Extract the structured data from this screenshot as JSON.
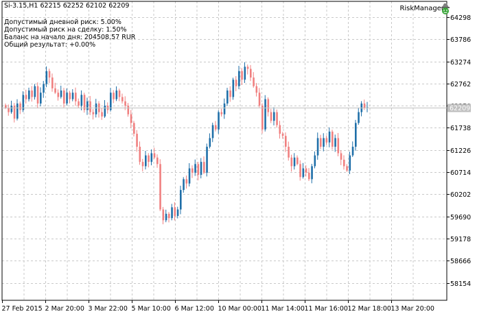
{
  "header": {
    "ohlc_line": "Si-3.15,H1  62215 62252 62102 62209"
  },
  "info_panel": {
    "lines": [
      "Допустимый дневной риск: 5.00%",
      "Допустимый риск на сделку: 1.50%",
      "Баланс на начало дня: 204508.57 RUR",
      "Общий результат: +0.00%"
    ]
  },
  "expert": {
    "name": "RiskManager",
    "icon": "smiley-hat-icon"
  },
  "colors": {
    "background": "#ffffff",
    "grid": "#c8c8c8",
    "bull": "#1f6fa8",
    "bear": "#f08080",
    "current_price_bg": "#c0c0c0",
    "axis": "#000000"
  },
  "current_price": "62209",
  "chart_data": {
    "type": "candlestick",
    "symbol": "Si-3.15",
    "timeframe": "H1",
    "price_axis_labels": [
      "64298",
      "63786",
      "63274",
      "62762",
      "62250",
      "61738",
      "61226",
      "60714",
      "60202",
      "59690",
      "59178",
      "58666",
      "58154"
    ],
    "time_axis_labels": [
      "27 Feb 2015",
      "2 Mar 20:00",
      "3 Mar 22:00",
      "5 Mar 10:00",
      "6 Mar 12:00",
      "10 Mar 00:00",
      "11 Mar 14:00",
      "11 Mar 16:00",
      "12 Mar 18:00",
      "13 Mar 20:00"
    ],
    "ylim": [
      57750,
      64550
    ],
    "grid": true,
    "closes": [
      62200,
      62100,
      62250,
      61950,
      62300,
      62150,
      62500,
      62400,
      62600,
      62450,
      62700,
      62300,
      62550,
      62750,
      63050,
      62900,
      62650,
      62550,
      62450,
      62600,
      62300,
      62550,
      62400,
      62550,
      62350,
      62250,
      62500,
      62150,
      62350,
      62100,
      62050,
      62300,
      62100,
      62000,
      62250,
      62150,
      62550,
      62400,
      62600,
      62450,
      62350,
      62250,
      62050,
      61850,
      61600,
      61300,
      60950,
      60850,
      61100,
      60950,
      61150,
      61050,
      60900,
      59850,
      59600,
      59750,
      59650,
      59900,
      59700,
      59850,
      60300,
      60550,
      60450,
      60800,
      60700,
      60900,
      60650,
      60950,
      60700,
      61300,
      61500,
      61800,
      61700,
      62100,
      62050,
      62300,
      62600,
      62450,
      62850,
      62700,
      63050,
      62850,
      63150,
      63100,
      62900,
      62700,
      62550,
      62250,
      61700,
      62400,
      62100,
      61900,
      62100,
      61800,
      61600,
      61550,
      61300,
      61050,
      60850,
      61050,
      60900,
      60600,
      60800,
      60700,
      60550,
      60850,
      61100,
      61500,
      61300,
      61500,
      61400,
      61650,
      61300,
      61500,
      61150,
      61000,
      60850,
      60750,
      61100,
      61300,
      61850,
      62100,
      62300,
      62200,
      62209
    ]
  }
}
